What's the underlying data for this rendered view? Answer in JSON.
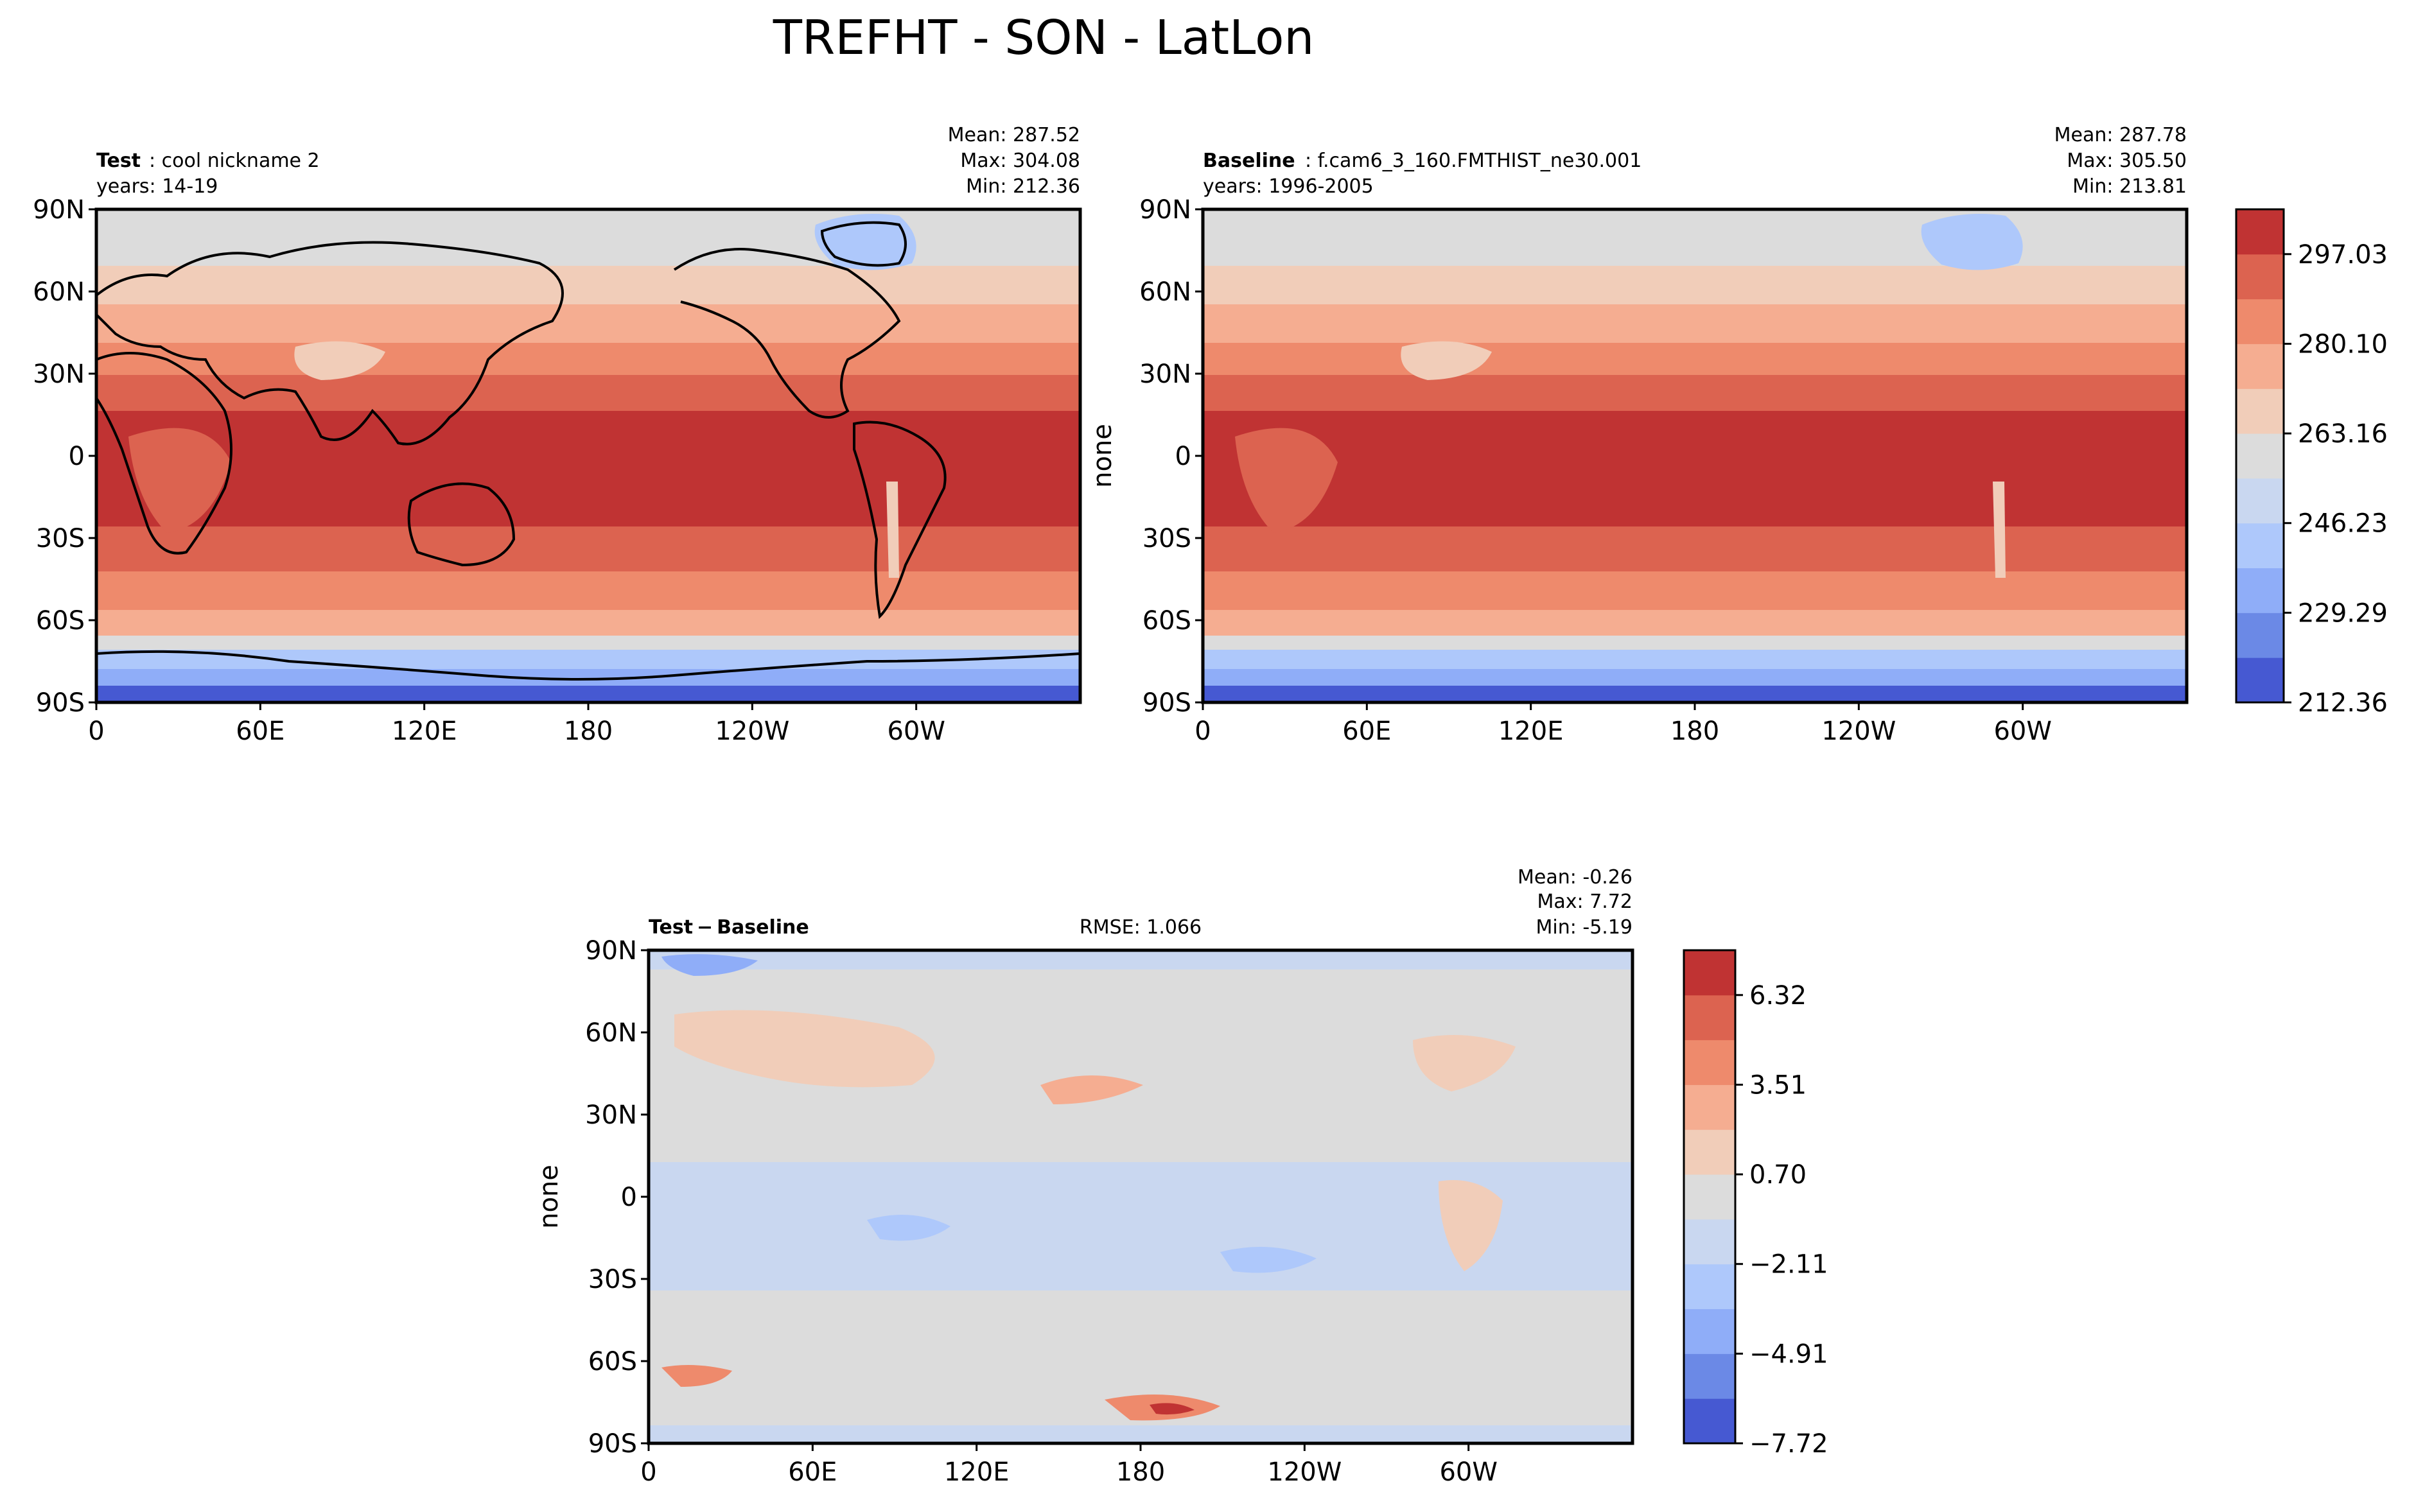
{
  "figure_title": "TREFHT - SON - LatLon",
  "colors": {
    "scale": [
      "#4659d2",
      "#6b89e6",
      "#8fadf8",
      "#aec8fb",
      "#c9d7f0",
      "#dcdcdc",
      "#f1cdb9",
      "#f5ad91",
      "#ee8a6c",
      "#dc6350",
      "#c03333"
    ],
    "land": "#000000"
  },
  "chart_data": [
    {
      "type": "heatmap",
      "panel": "test",
      "label_bold": "Test",
      "label_rest": ": cool nickname 2",
      "years": "years: 14-19",
      "stats": [
        "Mean: 287.52",
        "Max: 304.08",
        "Min: 212.36"
      ],
      "ylabel": "",
      "xticks": [
        "0",
        "60E",
        "120E",
        "180",
        "120W",
        "60W"
      ],
      "yticks": [
        "90N",
        "60N",
        "30N",
        "0",
        "30S",
        "60S",
        "90S"
      ],
      "xlim": [
        0,
        360
      ],
      "ylim": [
        -90,
        90
      ]
    },
    {
      "type": "heatmap",
      "panel": "baseline",
      "label_bold": "Baseline",
      "label_rest": ": f.cam6_3_160.FMTHIST_ne30.001",
      "years": "years: 1996-2005",
      "stats": [
        "Mean: 287.78",
        "Max: 305.50",
        "Min: 213.81"
      ],
      "ylabel": "none",
      "xticks": [
        "0",
        "60E",
        "120E",
        "180",
        "120W",
        "60W"
      ],
      "yticks": [
        "90N",
        "60N",
        "30N",
        "0",
        "30S",
        "60S",
        "90S"
      ],
      "xlim": [
        0,
        360
      ],
      "ylim": [
        -90,
        90
      ],
      "colorbar_ticks": [
        "212.36",
        "229.29",
        "246.23",
        "263.16",
        "280.10",
        "297.03"
      ]
    },
    {
      "type": "heatmap",
      "panel": "difference",
      "label_bold": "Test − Baseline",
      "rmse": "RMSE: 1.066",
      "stats": [
        "Mean: -0.26",
        "Max:  7.72",
        "Min: -5.19"
      ],
      "ylabel": "none",
      "xticks": [
        "0",
        "60E",
        "120E",
        "180",
        "120W",
        "60W"
      ],
      "yticks": [
        "90N",
        "60N",
        "30N",
        "0",
        "30S",
        "60S",
        "90S"
      ],
      "xlim": [
        0,
        360
      ],
      "ylim": [
        -90,
        90
      ],
      "colorbar_ticks": [
        "−7.72",
        "−4.91",
        "−2.11",
        "0.70",
        "3.51",
        "6.32"
      ]
    }
  ]
}
